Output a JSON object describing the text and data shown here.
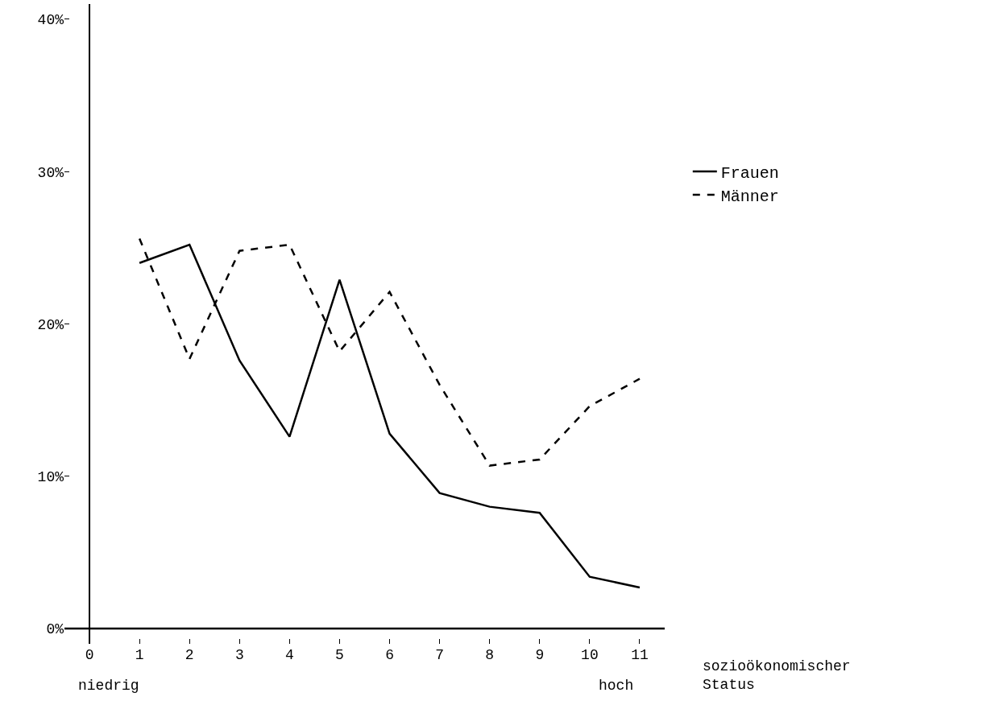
{
  "chart_data": {
    "type": "line",
    "xlabel": "sozioökonomischer Status",
    "x": [
      1,
      2,
      3,
      4,
      5,
      6,
      7,
      8,
      9,
      10,
      11
    ],
    "series": [
      {
        "name": "Frauen",
        "color": "#000000",
        "line_style": "solid",
        "values": [
          24.0,
          25.2,
          17.6,
          12.6,
          22.9,
          12.8,
          8.9,
          8.0,
          7.6,
          3.4,
          2.7
        ]
      },
      {
        "name": "Männer",
        "color": "#000000",
        "line_style": "dashed",
        "values": [
          25.6,
          17.7,
          24.8,
          25.2,
          18.2,
          22.1,
          16.0,
          10.7,
          11.1,
          14.6,
          16.4
        ]
      }
    ],
    "xlim": [
      -0.5,
      11.5
    ],
    "xticks": [
      0,
      1,
      2,
      3,
      4,
      5,
      6,
      7,
      8,
      9,
      10,
      11
    ],
    "ylim": [
      -1,
      41
    ],
    "yticks": [
      {
        "value": 0,
        "label": "0%"
      },
      {
        "value": 10,
        "label": "10%"
      },
      {
        "value": 20,
        "label": "20%"
      },
      {
        "value": 30,
        "label": "30%"
      },
      {
        "value": 40,
        "label": "40%"
      }
    ],
    "annotations": [
      "niedrig",
      "hoch"
    ],
    "grid": false,
    "legend": "right",
    "marker": "none"
  }
}
